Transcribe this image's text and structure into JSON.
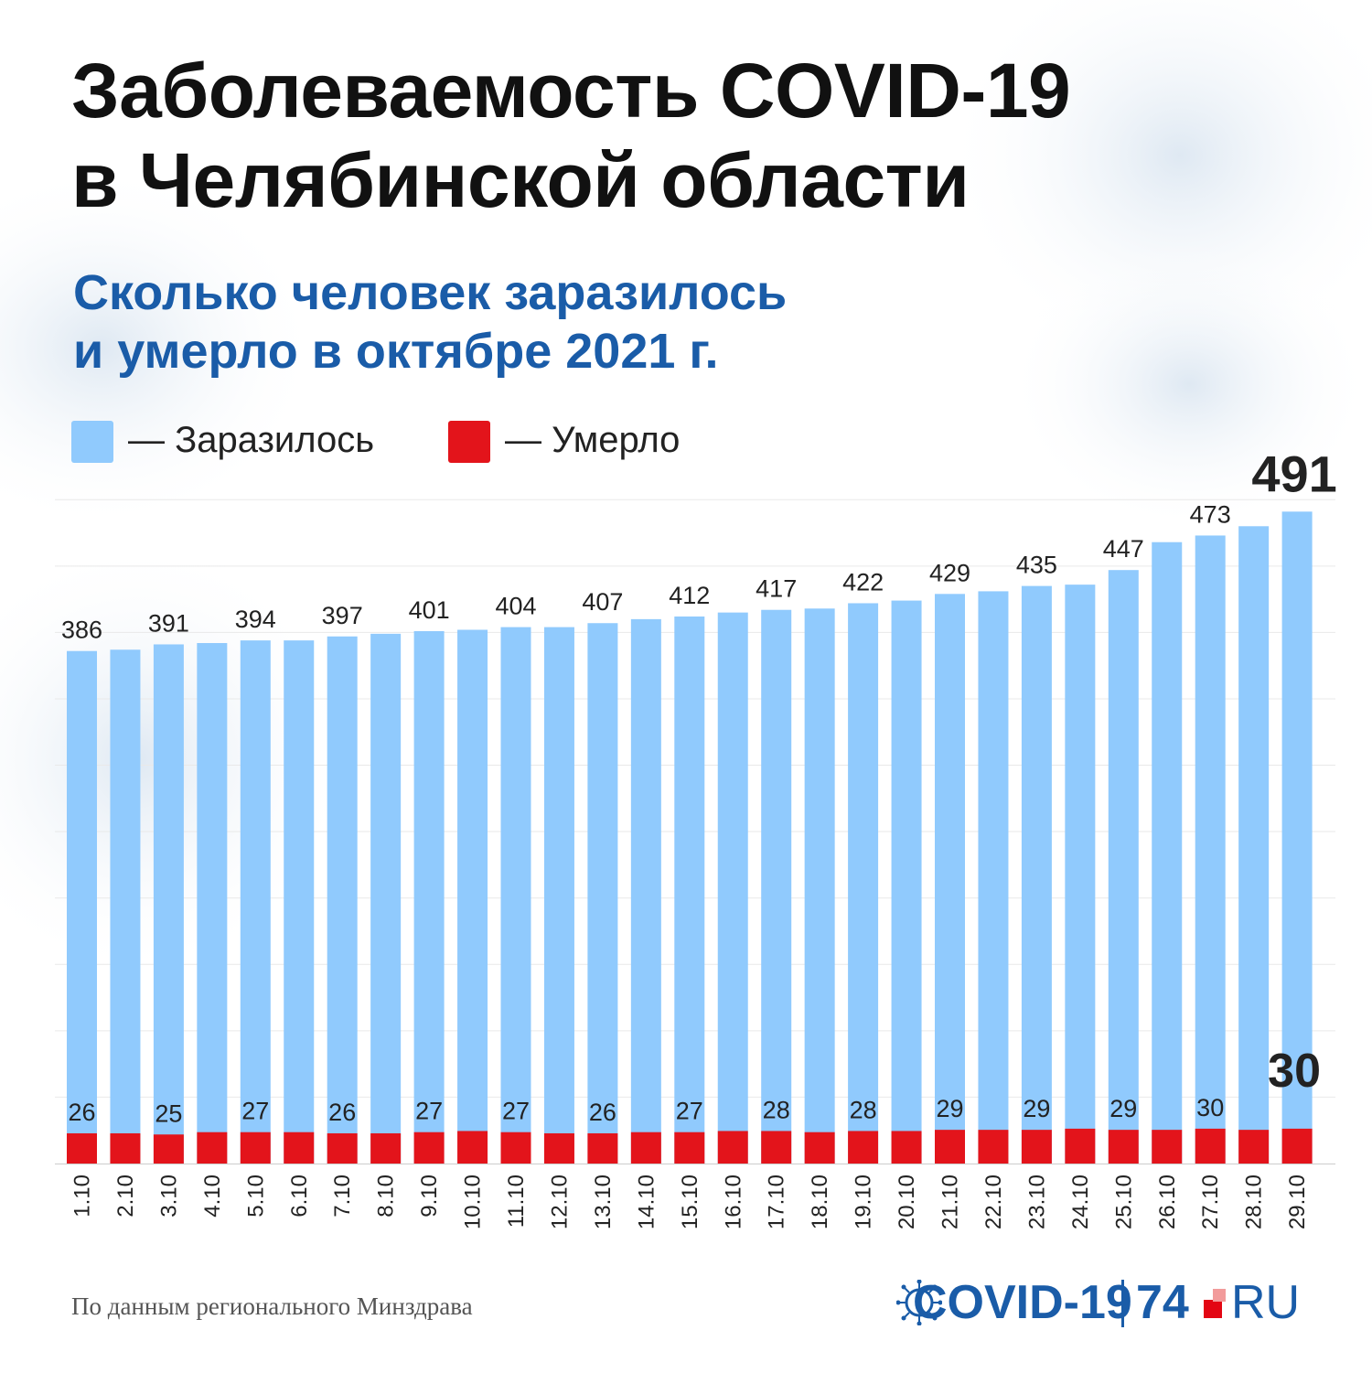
{
  "title": {
    "line1": "Заболеваемость COVID-19",
    "line2": "в Челябинской области"
  },
  "subtitle": {
    "line1": "Сколько человек заразилось",
    "line2": "и умерло в октябре 2021 г."
  },
  "legend": {
    "infected_label": "— Заразилось",
    "deaths_label": "— Умерло"
  },
  "colors": {
    "infected": "#90cafd",
    "deaths": "#e3141b",
    "title": "#111111",
    "subtitle": "#1a5ca8"
  },
  "chart_data": {
    "type": "bar",
    "categories": [
      "1.10",
      "2.10",
      "3.10",
      "4.10",
      "5.10",
      "6.10",
      "7.10",
      "8.10",
      "9.10",
      "10.10",
      "11.10",
      "12.10",
      "13.10",
      "14.10",
      "15.10",
      "16.10",
      "17.10",
      "18.10",
      "19.10",
      "20.10",
      "21.10",
      "22.10",
      "23.10",
      "24.10",
      "25.10",
      "26.10",
      "27.10",
      "28.10",
      "29.10"
    ],
    "series": [
      {
        "name": "Заразилось",
        "values": [
          386,
          387,
          391,
          392,
          394,
          394,
          397,
          399,
          401,
          402,
          404,
          404,
          407,
          410,
          412,
          415,
          417,
          418,
          422,
          424,
          429,
          431,
          435,
          436,
          447,
          468,
          473,
          480,
          491
        ],
        "labels": [
          "386",
          "",
          "391",
          "",
          "394",
          "",
          "397",
          "",
          "401",
          "",
          "404",
          "",
          "407",
          "",
          "412",
          "",
          "417",
          "",
          "422",
          "",
          "429",
          "",
          "435",
          "",
          "447",
          "",
          "473",
          "",
          "491"
        ]
      },
      {
        "name": "Умерло",
        "values": [
          26,
          26,
          25,
          27,
          27,
          27,
          26,
          26,
          27,
          28,
          27,
          26,
          26,
          27,
          27,
          28,
          28,
          27,
          28,
          28,
          29,
          29,
          29,
          30,
          29,
          29,
          30,
          29,
          30
        ],
        "labels": [
          "26",
          "",
          "25",
          "",
          "27",
          "",
          "26",
          "",
          "27",
          "",
          "27",
          "",
          "26",
          "",
          "27",
          "",
          "28",
          "",
          "28",
          "",
          "29",
          "",
          "29",
          "",
          "29",
          "",
          "30",
          "",
          "30"
        ]
      }
    ],
    "ylim": [
      0,
      520
    ],
    "grid": true,
    "legend_position": "top-left",
    "highlight_last": true
  },
  "source": "По данным регионального Минздрава",
  "brand": {
    "name": "COVID-19",
    "number": "74",
    "suffix": "RU"
  }
}
